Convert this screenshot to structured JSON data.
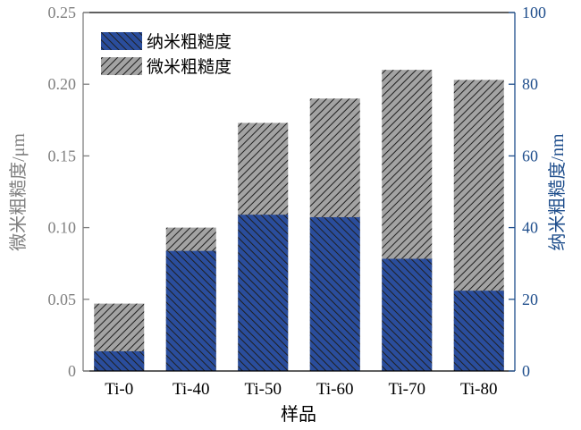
{
  "chart_data": {
    "type": "bar",
    "xlabel": "样品",
    "ylabel_left": "微米粗糙度/μm",
    "ylabel_right": "纳米粗糙度/nm",
    "categories": [
      "Ti-0",
      "Ti-40",
      "Ti-50",
      "Ti-60",
      "Ti-70",
      "Ti-80"
    ],
    "left_axis": {
      "min": 0,
      "max": 0.25,
      "ticks": [
        "0",
        "0.05",
        "0.10",
        "0.15",
        "0.20",
        "0.25"
      ],
      "tick_values": [
        0,
        0.05,
        0.1,
        0.15,
        0.2,
        0.25
      ]
    },
    "right_axis": {
      "min": 0,
      "max": 100,
      "ticks": [
        "0",
        "20",
        "40",
        "60",
        "80",
        "100"
      ],
      "tick_values": [
        0,
        20,
        40,
        60,
        80,
        100
      ]
    },
    "series": [
      {
        "name": "纳米粗糙度",
        "axis": "right",
        "values": [
          5.5,
          33.5,
          43.6,
          42.9,
          31.3,
          22.4
        ]
      },
      {
        "name": "微米粗糙度",
        "axis": "left",
        "values": [
          0.047,
          0.1,
          0.173,
          0.19,
          0.21,
          0.203
        ]
      }
    ],
    "legend_position": "top-left",
    "grid": false,
    "colors": {
      "nano": "#2a4d9c",
      "micro": "#a3a3a3",
      "hatch": "#1f1f1f",
      "left_axis": "#7f7f7f",
      "right_axis": "#1f4e8c"
    }
  }
}
